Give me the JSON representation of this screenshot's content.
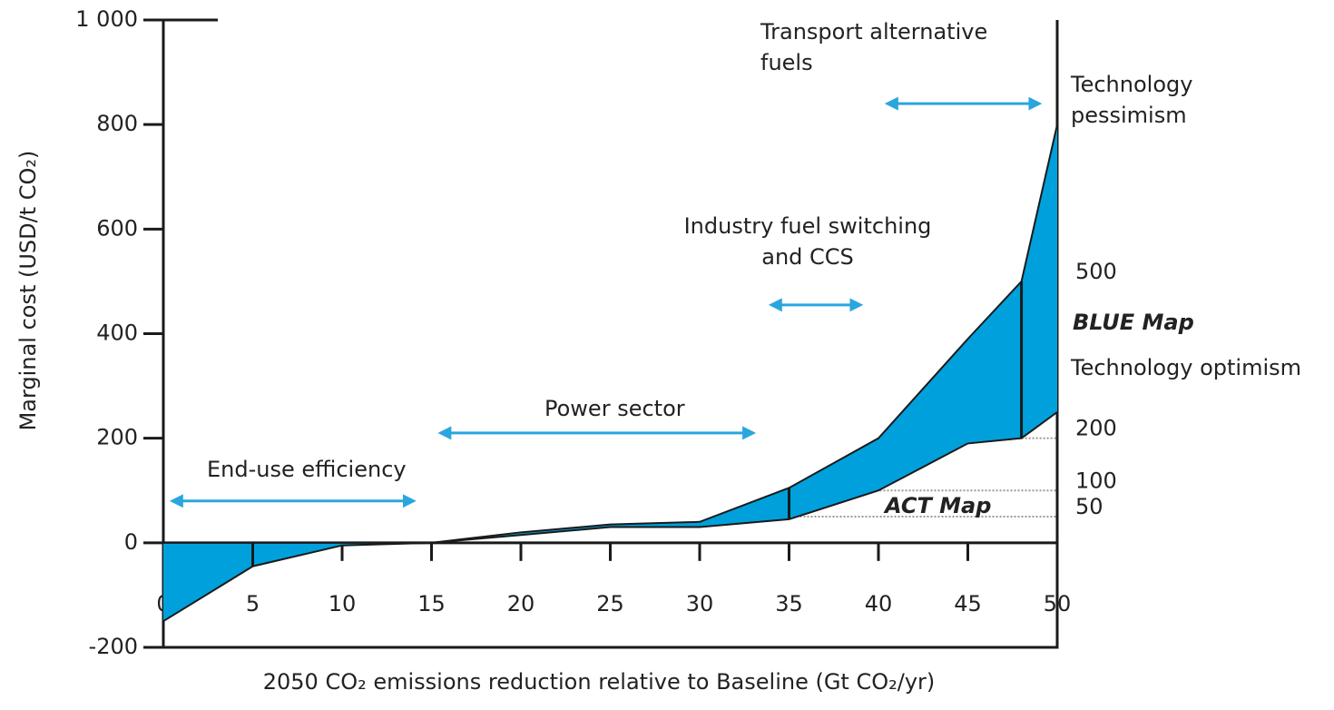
{
  "chart_data": {
    "type": "band",
    "x_label": "2050 CO₂ emissions reduction relative to Baseline (Gt CO₂/yr)",
    "y_label": "Marginal cost (USD/t CO₂)",
    "x": [
      0,
      5,
      10,
      15,
      20,
      25,
      30,
      35,
      40,
      45,
      48,
      50
    ],
    "series": [
      {
        "name": "Technology pessimism",
        "color": "#1a1a1a",
        "values": [
          0,
          0,
          0,
          0,
          20,
          35,
          40,
          105,
          200,
          390,
          500,
          800
        ]
      },
      {
        "name": "Technology optimism",
        "color": "#1a1a1a",
        "values": [
          -150,
          -45,
          -5,
          0,
          15,
          30,
          30,
          45,
          100,
          190,
          200,
          250
        ]
      }
    ],
    "fill_color": "#00a0dc",
    "dividers": [
      5,
      35,
      48
    ],
    "reference_lines": [
      {
        "value": 500,
        "from": 48
      },
      {
        "value": 200,
        "from": 48
      },
      {
        "value": 100,
        "from": 35
      },
      {
        "value": 50,
        "from": 35
      }
    ],
    "region_labels": [
      "BLUE Map",
      "ACT Map"
    ],
    "annotations": [
      "End-use efficiency",
      "Power sector",
      "Industry fuel switching and CCS",
      "Transport alternative fuels"
    ],
    "arrow_color": "#2aa6df",
    "xlim": [
      0,
      50
    ],
    "ylim": [
      -200,
      1000
    ],
    "xticks": [
      0,
      5,
      10,
      15,
      20,
      25,
      30,
      35,
      40,
      45,
      50
    ],
    "yticks": [
      -200,
      0,
      200,
      400,
      600,
      800,
      {
        "value": 1000,
        "label": "1 000"
      }
    ]
  }
}
